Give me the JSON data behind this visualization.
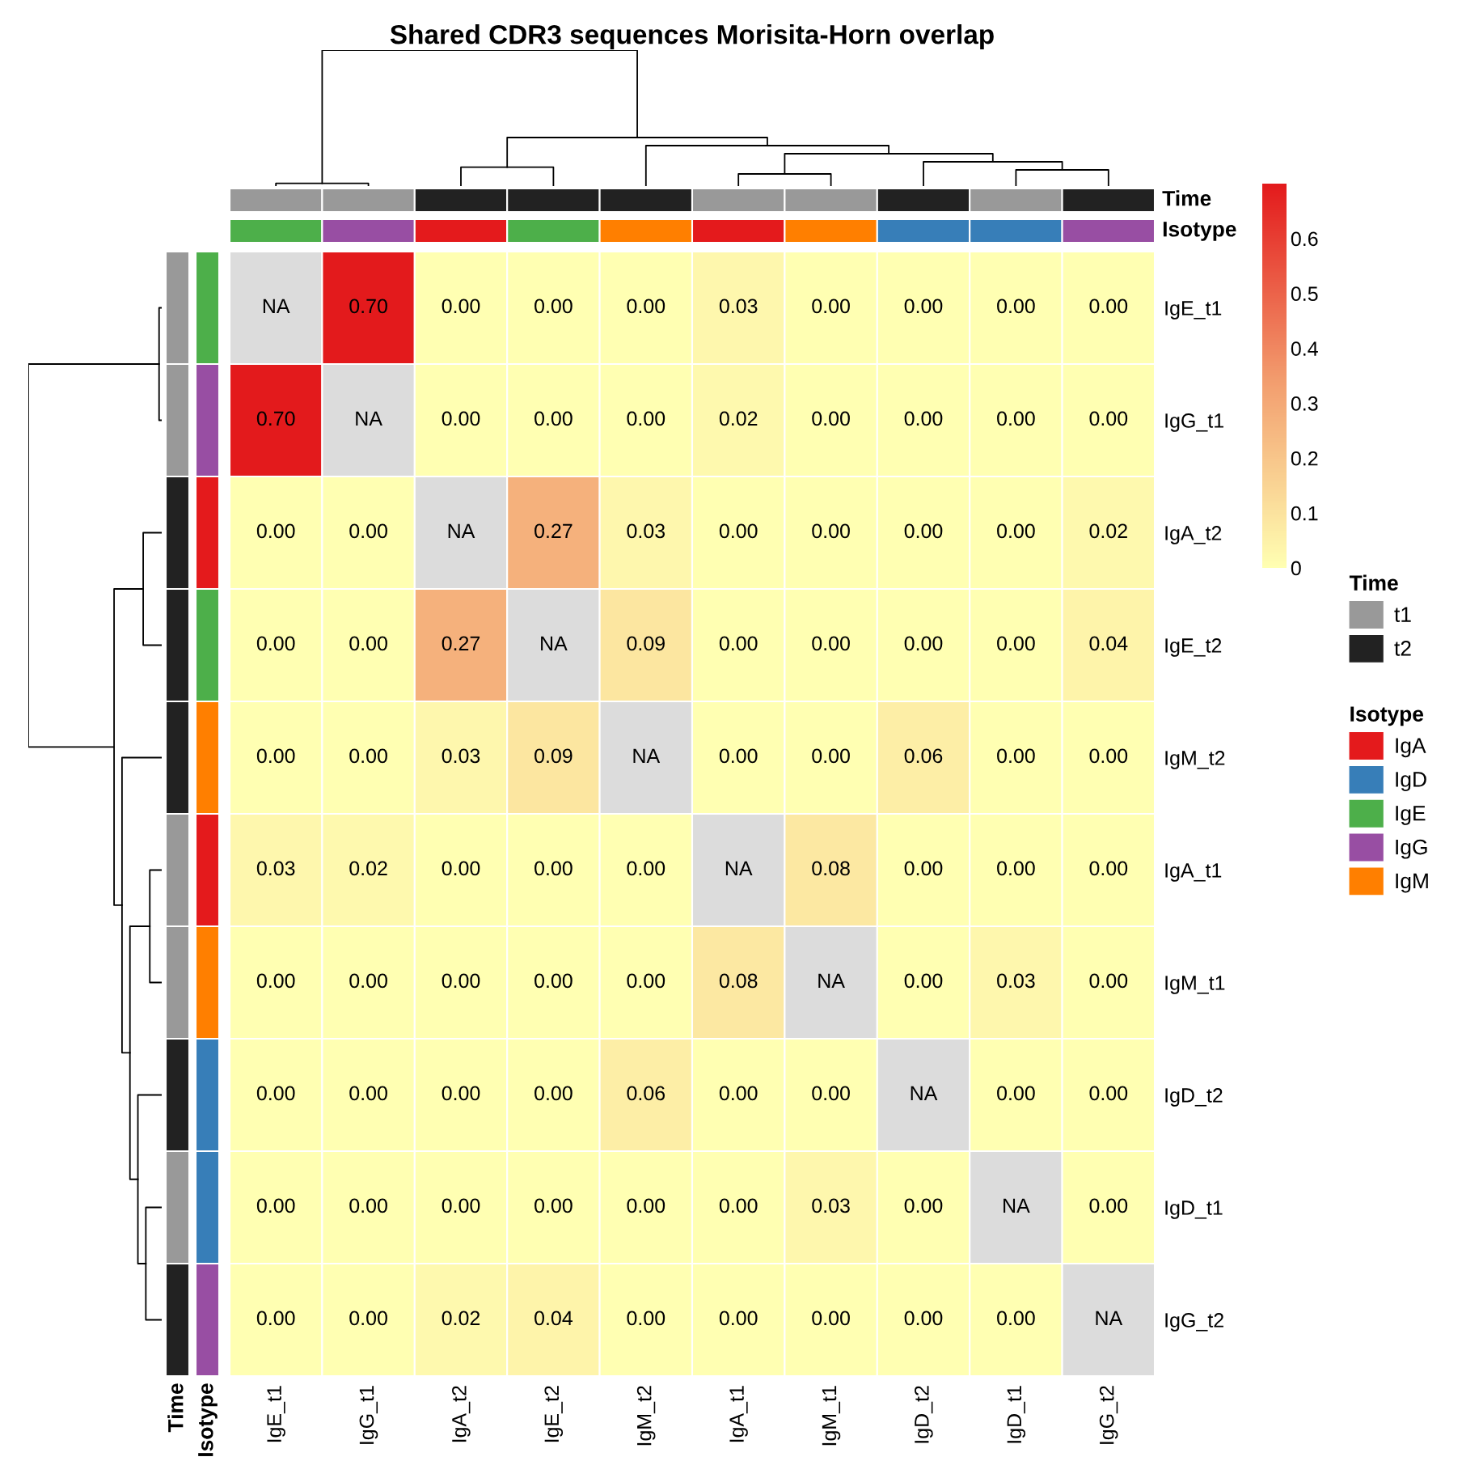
{
  "chart_data": [
    {
      "type": "heatmap",
      "title": "Shared CDR3 sequences Morisita-Horn overlap",
      "categories": [
        "IgE_t1",
        "IgG_t1",
        "IgA_t2",
        "IgE_t2",
        "IgM_t2",
        "IgA_t1",
        "IgM_t1",
        "IgD_t2",
        "IgD_t1",
        "IgG_t2"
      ],
      "y_categories": [
        "IgE_t1",
        "IgG_t1",
        "IgA_t2",
        "IgE_t2",
        "IgM_t2",
        "IgA_t1",
        "IgM_t1",
        "IgD_t2",
        "IgD_t1",
        "IgG_t2"
      ],
      "cells": [
        [
          null,
          0.7,
          0,
          0,
          0,
          0.03,
          0,
          0,
          0,
          0
        ],
        [
          0.7,
          null,
          0,
          0,
          0,
          0.02,
          0,
          0,
          0,
          0
        ],
        [
          0,
          0,
          null,
          0.27,
          0.03,
          0,
          0,
          0,
          0,
          0.02
        ],
        [
          0,
          0,
          0.27,
          null,
          0.09,
          0,
          0,
          0,
          0,
          0.04
        ],
        [
          0,
          0,
          0.03,
          0.09,
          null,
          0,
          0,
          0.06,
          0,
          0
        ],
        [
          0.03,
          0.02,
          0,
          0,
          0,
          null,
          0.08,
          0,
          0,
          0
        ],
        [
          0,
          0,
          0,
          0,
          0,
          0.08,
          null,
          0,
          0.03,
          0
        ],
        [
          0,
          0,
          0,
          0,
          0.06,
          0,
          0,
          null,
          0,
          0
        ],
        [
          0,
          0,
          0,
          0,
          0,
          0,
          0.03,
          0,
          null,
          0
        ],
        [
          0,
          0,
          0.02,
          0.04,
          0,
          0,
          0,
          0,
          0,
          null
        ]
      ],
      "cell_labels": [
        [
          "NA",
          "0.70",
          "0.00",
          "0.00",
          "0.00",
          "0.03",
          "0.00",
          "0.00",
          "0.00",
          "0.00"
        ],
        [
          "0.70",
          "NA",
          "0.00",
          "0.00",
          "0.00",
          "0.02",
          "0.00",
          "0.00",
          "0.00",
          "0.00"
        ],
        [
          "0.00",
          "0.00",
          "NA",
          "0.27",
          "0.03",
          "0.00",
          "0.00",
          "0.00",
          "0.00",
          "0.02"
        ],
        [
          "0.00",
          "0.00",
          "0.27",
          "NA",
          "0.09",
          "0.00",
          "0.00",
          "0.00",
          "0.00",
          "0.04"
        ],
        [
          "0.00",
          "0.00",
          "0.03",
          "0.09",
          "NA",
          "0.00",
          "0.00",
          "0.06",
          "0.00",
          "0.00"
        ],
        [
          "0.03",
          "0.02",
          "0.00",
          "0.00",
          "0.00",
          "NA",
          "0.08",
          "0.00",
          "0.00",
          "0.00"
        ],
        [
          "0.00",
          "0.00",
          "0.00",
          "0.00",
          "0.00",
          "0.08",
          "NA",
          "0.00",
          "0.03",
          "0.00"
        ],
        [
          "0.00",
          "0.00",
          "0.00",
          "0.00",
          "0.06",
          "0.00",
          "0.00",
          "NA",
          "0.00",
          "0.00"
        ],
        [
          "0.00",
          "0.00",
          "0.00",
          "0.00",
          "0.00",
          "0.00",
          "0.03",
          "0.00",
          "NA",
          "0.00"
        ],
        [
          "0.00",
          "0.00",
          "0.02",
          "0.04",
          "0.00",
          "0.00",
          "0.00",
          "0.00",
          "0.00",
          "NA"
        ]
      ],
      "colors": [
        "#ffffb2",
        "#f29a6c",
        "#e31a1c"
      ],
      "clim": [
        0,
        0.7
      ],
      "cticks": [
        0,
        0.1,
        0.2,
        0.3,
        0.4,
        0.5,
        0.6
      ]
    },
    {
      "type": "other",
      "title": "Time",
      "legend_title": "Time",
      "colors": [
        "#999999",
        "#999999",
        "#222222",
        "#222222",
        "#222222",
        "#999999",
        "#999999",
        "#222222",
        "#999999",
        "#222222"
      ],
      "series": [
        {
          "name": "t1",
          "color": "#999999"
        },
        {
          "name": "t2",
          "color": "#222222"
        }
      ]
    },
    {
      "type": "other",
      "title": "Isotype",
      "legend_title": "Isotype",
      "colors": [
        "#4daf4a",
        "#984ea3",
        "#e41a1c",
        "#4daf4a",
        "#ff7f00",
        "#e41a1c",
        "#ff7f00",
        "#377eb8",
        "#377eb8",
        "#984ea3"
      ],
      "series": [
        {
          "name": "IgA",
          "color": "#e41a1c"
        },
        {
          "name": "IgD",
          "color": "#377eb8"
        },
        {
          "name": "IgE",
          "color": "#4daf4a"
        },
        {
          "name": "IgG",
          "color": "#984ea3"
        },
        {
          "name": "IgM",
          "color": "#ff7f00"
        }
      ]
    }
  ]
}
